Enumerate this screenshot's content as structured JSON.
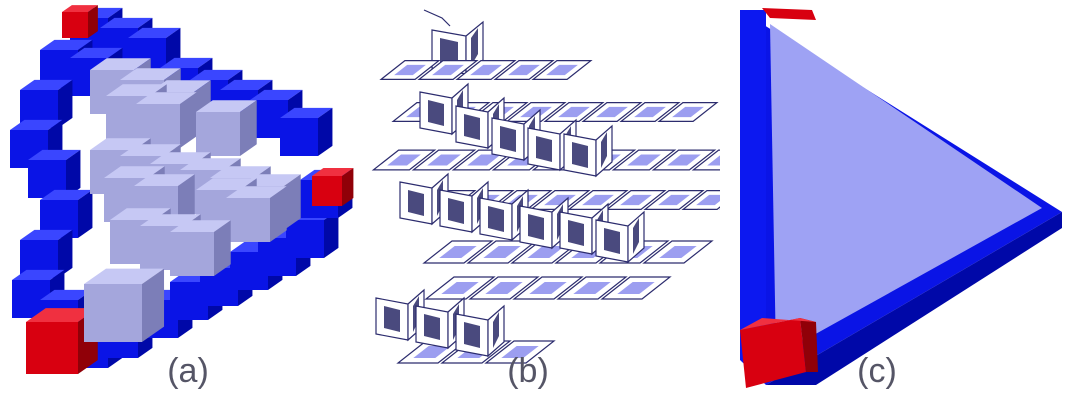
{
  "captions": {
    "a": "(a)",
    "b": "(b)",
    "c": "(c)"
  },
  "colors": {
    "blue_face": "#0a14e6",
    "blue_top": "#3a46ff",
    "blue_side": "#0008a8",
    "red_face": "#d80010",
    "red_top": "#f03040",
    "red_side": "#900008",
    "lav_top": "#c6c8f4",
    "lav_left": "#a4a6dc",
    "lav_right": "#7c7eb8",
    "outline": "#2c2c6e",
    "tile_fill": "#9c9ef0",
    "dark_face": "#4a4a7e",
    "triangle_fill": "#9ea2f4"
  }
}
